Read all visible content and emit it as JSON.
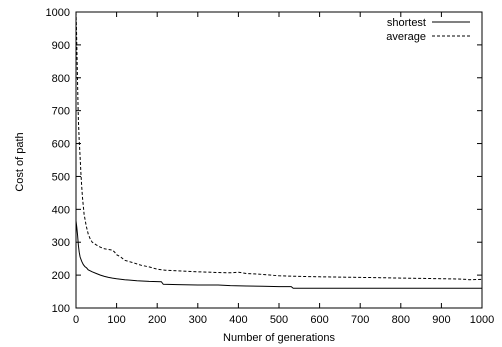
{
  "chart_data": {
    "type": "line",
    "title": "",
    "xlabel": "Number of generations",
    "ylabel": "Cost of path",
    "xlim": [
      0,
      1000
    ],
    "ylim": [
      100,
      1000
    ],
    "xticks": [
      0,
      100,
      200,
      300,
      400,
      500,
      600,
      700,
      800,
      900,
      1000
    ],
    "yticks": [
      100,
      200,
      300,
      400,
      500,
      600,
      700,
      800,
      900,
      1000
    ],
    "grid": false,
    "legend_position": "top-right",
    "series": [
      {
        "name": "shortest",
        "style": "solid",
        "color": "#000000",
        "points": [
          [
            0,
            365
          ],
          [
            2,
            345
          ],
          [
            4,
            320
          ],
          [
            6,
            290
          ],
          [
            8,
            270
          ],
          [
            10,
            255
          ],
          [
            14,
            242
          ],
          [
            18,
            232
          ],
          [
            22,
            226
          ],
          [
            26,
            222
          ],
          [
            30,
            216
          ],
          [
            40,
            210
          ],
          [
            50,
            205
          ],
          [
            60,
            200
          ],
          [
            70,
            196
          ],
          [
            80,
            193
          ],
          [
            90,
            191
          ],
          [
            100,
            189
          ],
          [
            120,
            186
          ],
          [
            150,
            183
          ],
          [
            180,
            181
          ],
          [
            210,
            180
          ],
          [
            215,
            172
          ],
          [
            250,
            171
          ],
          [
            300,
            170
          ],
          [
            350,
            170
          ],
          [
            380,
            168
          ],
          [
            420,
            167
          ],
          [
            460,
            166
          ],
          [
            500,
            165
          ],
          [
            530,
            165
          ],
          [
            535,
            160
          ],
          [
            600,
            160
          ],
          [
            700,
            160
          ],
          [
            800,
            160
          ],
          [
            900,
            160
          ],
          [
            1000,
            160
          ]
        ]
      },
      {
        "name": "average",
        "style": "dashed",
        "color": "#000000",
        "points": [
          [
            0,
            1000
          ],
          [
            1,
            960
          ],
          [
            2,
            900
          ],
          [
            3,
            840
          ],
          [
            4,
            780
          ],
          [
            5,
            720
          ],
          [
            6,
            670
          ],
          [
            8,
            610
          ],
          [
            10,
            560
          ],
          [
            12,
            510
          ],
          [
            14,
            470
          ],
          [
            16,
            435
          ],
          [
            18,
            410
          ],
          [
            20,
            385
          ],
          [
            25,
            350
          ],
          [
            30,
            325
          ],
          [
            35,
            310
          ],
          [
            40,
            300
          ],
          [
            50,
            292
          ],
          [
            60,
            285
          ],
          [
            70,
            280
          ],
          [
            80,
            278
          ],
          [
            90,
            276
          ],
          [
            95,
            270
          ],
          [
            100,
            262
          ],
          [
            110,
            255
          ],
          [
            120,
            245
          ],
          [
            140,
            238
          ],
          [
            160,
            230
          ],
          [
            180,
            225
          ],
          [
            200,
            218
          ],
          [
            220,
            215
          ],
          [
            250,
            213
          ],
          [
            300,
            210
          ],
          [
            350,
            208
          ],
          [
            380,
            207
          ],
          [
            400,
            209
          ],
          [
            420,
            205
          ],
          [
            450,
            203
          ],
          [
            500,
            198
          ],
          [
            550,
            196
          ],
          [
            600,
            195
          ],
          [
            650,
            194
          ],
          [
            700,
            193
          ],
          [
            750,
            192
          ],
          [
            800,
            191
          ],
          [
            850,
            190
          ],
          [
            900,
            189
          ],
          [
            950,
            188
          ],
          [
            970,
            186
          ],
          [
            1000,
            187
          ]
        ]
      }
    ]
  }
}
